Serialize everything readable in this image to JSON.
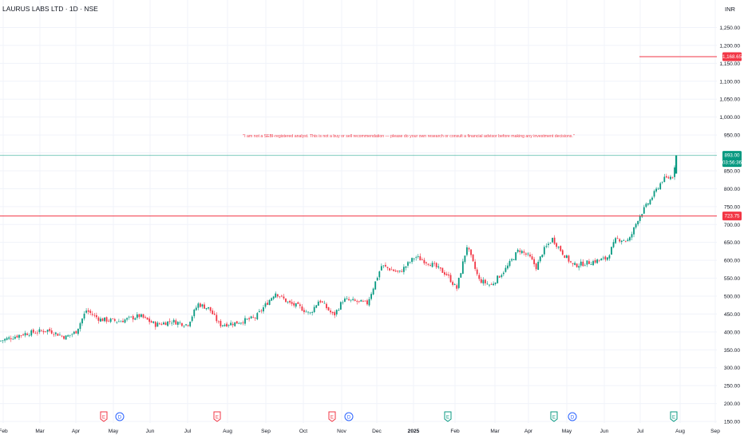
{
  "header": {
    "symbol_title": "LAURUS LABS LTD · 1D · NSE",
    "currency": "INR"
  },
  "disclaimer": "\"I am not a SEBI-registered analyst. This is not a buy or sell recommendation — please do your own research or consult a financial advisor before making any investment decisions.\"",
  "colors": {
    "up": "#089981",
    "down": "#f23645",
    "grid": "#f0f3fa",
    "axis_text": "#131722",
    "resistance_line": "#f23645",
    "price_line": "#089981",
    "event_earnings_red": "#f23645",
    "event_earnings_green": "#089981",
    "event_dividend": "#2962ff"
  },
  "chart_data": {
    "type": "candlestick",
    "title": "LAURUS LABS LTD · 1D · NSE",
    "ylim": [
      150,
      1300
    ],
    "y_ticks": [
      "1,250.00",
      "1,200.00",
      "1,150.00",
      "1,100.00",
      "1,050.00",
      "1,000.00",
      "950.00",
      "900.00",
      "850.00",
      "800.00",
      "750.00",
      "700.00",
      "650.00",
      "600.00",
      "550.00",
      "500.00",
      "450.00",
      "400.00",
      "350.00",
      "300.00",
      "250.00",
      "200.00",
      "150.00"
    ],
    "x_ticks": [
      "Feb",
      "Mar",
      "Apr",
      "May",
      "Jun",
      "Jul",
      "Aug",
      "Sep",
      "Oct",
      "Nov",
      "Dec",
      "2025",
      "Feb",
      "Mar",
      "Apr",
      "May",
      "Jun",
      "Jul",
      "Aug",
      "Sep"
    ],
    "last_price": "893.00",
    "countdown": "03:56:36",
    "horizontal_levels": [
      {
        "label": "1,168.65",
        "value": 1168.65
      },
      {
        "label": "723.75",
        "value": 723.75
      }
    ],
    "events": [
      {
        "type": "earnings",
        "color": "red",
        "glyph": "E",
        "date_index": 130
      },
      {
        "type": "dividend",
        "color": "blue",
        "glyph": "D",
        "date_index": 150
      },
      {
        "type": "earnings",
        "color": "red",
        "glyph": "E",
        "date_index": 272
      },
      {
        "type": "earnings",
        "color": "red",
        "glyph": "E",
        "date_index": 416
      },
      {
        "type": "dividend",
        "color": "blue",
        "glyph": "D",
        "date_index": 437
      },
      {
        "type": "earnings",
        "color": "green",
        "glyph": "E",
        "date_index": 561
      },
      {
        "type": "earnings",
        "color": "green",
        "glyph": "E",
        "date_index": 694
      },
      {
        "type": "dividend",
        "color": "blue",
        "glyph": "D",
        "date_index": 717
      },
      {
        "type": "earnings",
        "color": "green",
        "glyph": "E",
        "date_index": 844
      }
    ],
    "close_path": [
      [
        0,
        375
      ],
      [
        30,
        395
      ],
      [
        60,
        405
      ],
      [
        82,
        385
      ],
      [
        95,
        400
      ],
      [
        108,
        460
      ],
      [
        125,
        435
      ],
      [
        150,
        430
      ],
      [
        175,
        445
      ],
      [
        195,
        420
      ],
      [
        215,
        430
      ],
      [
        235,
        420
      ],
      [
        248,
        478
      ],
      [
        262,
        465
      ],
      [
        275,
        420
      ],
      [
        295,
        425
      ],
      [
        320,
        440
      ],
      [
        345,
        510
      ],
      [
        362,
        480
      ],
      [
        375,
        470
      ],
      [
        388,
        450
      ],
      [
        400,
        490
      ],
      [
        418,
        445
      ],
      [
        430,
        490
      ],
      [
        460,
        480
      ],
      [
        478,
        585
      ],
      [
        500,
        565
      ],
      [
        520,
        610
      ],
      [
        540,
        590
      ],
      [
        560,
        560
      ],
      [
        572,
        520
      ],
      [
        585,
        640
      ],
      [
        600,
        545
      ],
      [
        615,
        530
      ],
      [
        635,
        580
      ],
      [
        650,
        630
      ],
      [
        663,
        610
      ],
      [
        672,
        580
      ],
      [
        680,
        625
      ],
      [
        692,
        660
      ],
      [
        705,
        620
      ],
      [
        718,
        585
      ],
      [
        740,
        595
      ],
      [
        760,
        605
      ],
      [
        772,
        660
      ],
      [
        788,
        655
      ],
      [
        800,
        720
      ],
      [
        815,
        770
      ],
      [
        830,
        825
      ],
      [
        843,
        835
      ],
      [
        847,
        893
      ]
    ]
  }
}
